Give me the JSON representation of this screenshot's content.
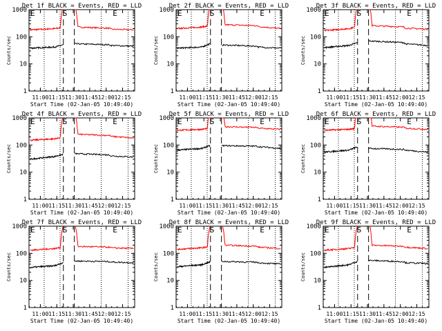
{
  "chart_data": [
    {
      "type": "line",
      "title": "Det 1f BLACK = Events, RED = LLD",
      "ylabel": "Counts/sec",
      "xlabel": "Start Time (02-Jan-05 10:49:40)",
      "x_ticks": [
        "11:00",
        "11:15",
        "11:30",
        "11:45",
        "12:00",
        "12:15"
      ],
      "y_ticks": [
        "1",
        "10",
        "100",
        "1000"
      ],
      "ylim": [
        1,
        1000
      ],
      "xlim": [
        "10:49:40",
        "12:26:00"
      ],
      "markers": {
        "start": "S",
        "end": "E",
        "left": "E"
      },
      "series": [
        {
          "name": "LLD",
          "color": "#ff0000",
          "pre": [
            180,
            200,
            220
          ],
          "post": [
            230,
            190,
            180
          ]
        },
        {
          "name": "Events",
          "color": "#000000",
          "pre": [
            38,
            42,
            50
          ],
          "post": [
            55,
            48,
            45
          ]
        }
      ]
    },
    {
      "type": "line",
      "title": "Det 2f BLACK = Events, RED = LLD",
      "ylabel": "Counts/sec",
      "xlabel": "Start Time (02-Jan-05 10:49:40)",
      "x_ticks": [
        "11:00",
        "11:15",
        "11:30",
        "11:45",
        "12:00",
        "12:15"
      ],
      "y_ticks": [
        "1",
        "10",
        "100",
        "1000"
      ],
      "ylim": [
        1,
        1000
      ],
      "xlim": [
        "10:49:40",
        "12:26:00"
      ],
      "markers": {
        "start": "S",
        "end": "E",
        "left": "E"
      },
      "series": [
        {
          "name": "LLD",
          "color": "#ff0000",
          "pre": [
            200,
            230,
            260
          ],
          "post": [
            280,
            240,
            200
          ]
        },
        {
          "name": "Events",
          "color": "#000000",
          "pre": [
            38,
            42,
            55
          ],
          "post": [
            50,
            42,
            38
          ]
        }
      ]
    },
    {
      "type": "line",
      "title": "Det 3f BLACK = Events, RED = LLD",
      "ylabel": "Counts/sec",
      "xlabel": "Start Time (02-Jan-05 10:49:40)",
      "x_ticks": [
        "11:00",
        "11:15",
        "11:30",
        "11:45",
        "12:00",
        "12:15"
      ],
      "y_ticks": [
        "1",
        "10",
        "100",
        "1000"
      ],
      "ylim": [
        1,
        1000
      ],
      "xlim": [
        "10:49:40",
        "12:26:00"
      ],
      "markers": {
        "start": "S",
        "end": "E",
        "left": "E"
      },
      "series": [
        {
          "name": "LLD",
          "color": "#ff0000",
          "pre": [
            170,
            200,
            240
          ],
          "post": [
            260,
            210,
            190
          ]
        },
        {
          "name": "Events",
          "color": "#000000",
          "pre": [
            40,
            48,
            60
          ],
          "post": [
            70,
            55,
            48
          ]
        }
      ]
    },
    {
      "type": "line",
      "title": "Det 4f BLACK = Events, RED = LLD",
      "ylabel": "Counts/sec",
      "xlabel": "Start Time (02-Jan-05 10:49:40)",
      "x_ticks": [
        "11:00",
        "11:15",
        "11:30",
        "11:45",
        "12:00",
        "12:15"
      ],
      "y_ticks": [
        "1",
        "10",
        "100",
        "1000"
      ],
      "ylim": [
        1,
        1000
      ],
      "xlim": [
        "10:49:40",
        "12:26:00"
      ],
      "markers": {
        "start": "S",
        "end": "E",
        "left": "E"
      },
      "series": [
        {
          "name": "LLD",
          "color": "#ff0000",
          "pre": [
            150,
            170,
            200
          ],
          "post": [
            250,
            210,
            180
          ]
        },
        {
          "name": "Events",
          "color": "#000000",
          "pre": [
            30,
            38,
            45
          ],
          "post": [
            48,
            40,
            36
          ]
        }
      ]
    },
    {
      "type": "line",
      "title": "Det 5f BLACK = Events, RED = LLD",
      "ylabel": "Counts/sec",
      "xlabel": "Start Time (02-Jan-05 10:49:40)",
      "x_ticks": [
        "11:00",
        "11:15",
        "11:30",
        "11:45",
        "12:00",
        "12:15"
      ],
      "y_ticks": [
        "1",
        "10",
        "100",
        "1000"
      ],
      "ylim": [
        1,
        1000
      ],
      "xlim": [
        "10:49:40",
        "12:26:00"
      ],
      "markers": {
        "start": "S",
        "end": "E",
        "left": "E"
      },
      "series": [
        {
          "name": "LLD",
          "color": "#ff0000",
          "pre": [
            350,
            380,
            420
          ],
          "post": [
            480,
            420,
            380
          ]
        },
        {
          "name": "Events",
          "color": "#000000",
          "pre": [
            65,
            75,
            95
          ],
          "post": [
            95,
            88,
            75
          ]
        }
      ]
    },
    {
      "type": "line",
      "title": "Det 6f BLACK = Events, RED = LLD",
      "ylabel": "Counts/sec",
      "xlabel": "Start Time (02-Jan-05 10:49:40)",
      "x_ticks": [
        "11:00",
        "11:15",
        "11:30",
        "11:45",
        "12:00",
        "12:15"
      ],
      "y_ticks": [
        "1",
        "10",
        "100",
        "1000"
      ],
      "ylim": [
        1,
        1000
      ],
      "xlim": [
        "10:49:40",
        "12:26:00"
      ],
      "markers": {
        "start": "S",
        "end": "E",
        "left": "E"
      },
      "series": [
        {
          "name": "LLD",
          "color": "#ff0000",
          "pre": [
            350,
            380,
            420
          ],
          "post": [
            500,
            420,
            380
          ]
        },
        {
          "name": "Events",
          "color": "#000000",
          "pre": [
            55,
            65,
            85
          ],
          "post": [
            75,
            65,
            55
          ]
        }
      ]
    },
    {
      "type": "line",
      "title": "Det 7f BLACK = Events, RED = LLD",
      "ylabel": "Counts/sec",
      "xlabel": "Start Time (02-Jan-05 10:49:40)",
      "x_ticks": [
        "11:00",
        "11:15",
        "11:30",
        "11:45",
        "12:00",
        "12:15"
      ],
      "y_ticks": [
        "1",
        "10",
        "100",
        "1000"
      ],
      "ylim": [
        1,
        1000
      ],
      "xlim": [
        "10:49:40",
        "12:26:00"
      ],
      "markers": {
        "start": "S",
        "end": "E",
        "left": "E"
      },
      "series": [
        {
          "name": "LLD",
          "color": "#ff0000",
          "pre": [
            130,
            150,
            170
          ],
          "post": [
            180,
            160,
            150
          ]
        },
        {
          "name": "Events",
          "color": "#000000",
          "pre": [
            30,
            35,
            45
          ],
          "post": [
            52,
            48,
            45
          ]
        }
      ]
    },
    {
      "type": "line",
      "title": "Det 8f BLACK = Events, RED = LLD",
      "ylabel": "Counts/sec",
      "xlabel": "Start Time (02-Jan-05 10:49:40)",
      "x_ticks": [
        "11:00",
        "11:15",
        "11:30",
        "11:45",
        "12:00",
        "12:15"
      ],
      "y_ticks": [
        "1",
        "10",
        "100",
        "1000"
      ],
      "ylim": [
        1,
        1000
      ],
      "xlim": [
        "10:49:40",
        "12:26:00"
      ],
      "markers": {
        "start": "S",
        "end": "E",
        "left": "E"
      },
      "series": [
        {
          "name": "LLD",
          "color": "#ff0000",
          "pre": [
            140,
            160,
            180
          ],
          "post": [
            200,
            170,
            150
          ]
        },
        {
          "name": "Events",
          "color": "#000000",
          "pre": [
            32,
            38,
            48
          ],
          "post": [
            50,
            45,
            40
          ]
        }
      ]
    },
    {
      "type": "line",
      "title": "Det 9f BLACK = Events, RED = LLD",
      "ylabel": "Counts/sec",
      "xlabel": "Start Time (02-Jan-05 10:49:40)",
      "x_ticks": [
        "11:00",
        "11:15",
        "11:30",
        "11:45",
        "12:00",
        "12:15"
      ],
      "y_ticks": [
        "1",
        "10",
        "100",
        "1000"
      ],
      "ylim": [
        1,
        1000
      ],
      "xlim": [
        "10:49:40",
        "12:26:00"
      ],
      "markers": {
        "start": "S",
        "end": "E",
        "left": "E"
      },
      "series": [
        {
          "name": "LLD",
          "color": "#ff0000",
          "pre": [
            130,
            150,
            170
          ],
          "post": [
            200,
            170,
            150
          ]
        },
        {
          "name": "Events",
          "color": "#000000",
          "pre": [
            30,
            38,
            50
          ],
          "post": [
            55,
            45,
            42
          ]
        }
      ]
    }
  ]
}
